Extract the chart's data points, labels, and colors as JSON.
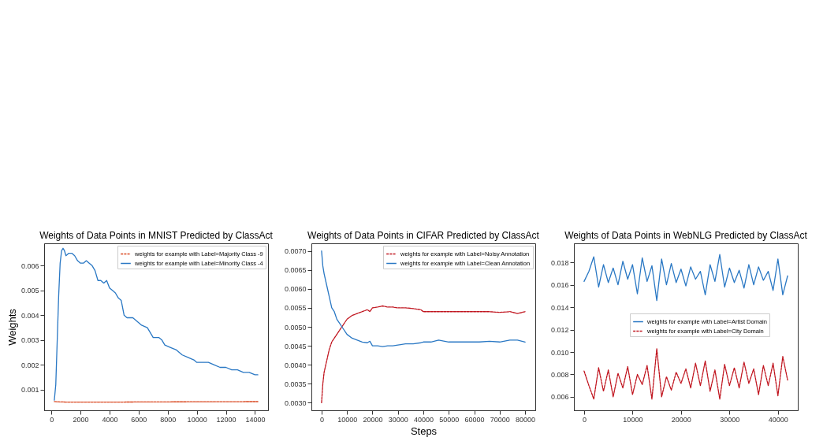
{
  "chart_data": [
    {
      "type": "line",
      "title": "Weights of Data Points in MNIST Predicted by ClassAct",
      "ylabel": "Weights",
      "legend": "top right",
      "grid": false,
      "xlim": [
        -500,
        14900
      ],
      "xticks": [
        0,
        2000,
        4000,
        6000,
        8000,
        10000,
        12000,
        14000
      ],
      "ylim": [
        0.00017,
        0.0069
      ],
      "yticks": [
        0.001,
        0.002,
        0.003,
        0.004,
        0.005,
        0.006
      ],
      "series": [
        {
          "name": "weights for example with Label=Majority Class -9",
          "color": "#d9461e",
          "line_style": "dashed",
          "x": [
            200,
            1000,
            4000,
            8000,
            14200
          ],
          "values": [
            0.00052,
            0.0005,
            0.0005,
            0.00051,
            0.00052
          ]
        },
        {
          "name": "weights for example with Label=Minority Class -4",
          "color": "#2a78c4",
          "line_style": "solid",
          "x": [
            200,
            300,
            400,
            500,
            600,
            700,
            800,
            900,
            1000,
            1200,
            1400,
            1600,
            1800,
            2000,
            2200,
            2400,
            2600,
            2800,
            3000,
            3200,
            3400,
            3600,
            3800,
            4000,
            4200,
            4400,
            4600,
            4800,
            5000,
            5200,
            5600,
            6000,
            6200,
            6600,
            7000,
            7200,
            7400,
            7600,
            7800,
            8200,
            8600,
            9000,
            9400,
            9800,
            10000,
            10400,
            10800,
            11200,
            11600,
            12000,
            12400,
            12800,
            13200,
            13600,
            14000,
            14200
          ],
          "values": [
            0.00058,
            0.0012,
            0.003,
            0.0048,
            0.0061,
            0.0066,
            0.0067,
            0.0066,
            0.0064,
            0.0065,
            0.0065,
            0.0064,
            0.0062,
            0.0061,
            0.0061,
            0.0062,
            0.0061,
            0.006,
            0.0058,
            0.0054,
            0.0054,
            0.0053,
            0.0054,
            0.0051,
            0.005,
            0.0049,
            0.0047,
            0.0046,
            0.004,
            0.0039,
            0.0039,
            0.0037,
            0.0036,
            0.0035,
            0.0031,
            0.0031,
            0.0031,
            0.003,
            0.0028,
            0.0027,
            0.0026,
            0.0024,
            0.0023,
            0.0022,
            0.0021,
            0.0021,
            0.0021,
            0.002,
            0.0019,
            0.0019,
            0.0018,
            0.0018,
            0.0017,
            0.0017,
            0.0016,
            0.0016
          ]
        }
      ]
    },
    {
      "type": "line",
      "title": "Weights of Data Points in CIFAR Predicted by ClassAct",
      "xlabel": "Steps",
      "legend": "top right",
      "grid": false,
      "xlim": [
        -4000,
        84000
      ],
      "xticks": [
        0,
        10000,
        20000,
        30000,
        40000,
        50000,
        60000,
        70000,
        80000
      ],
      "ylim": [
        0.0028,
        0.0072
      ],
      "yticks": [
        {
          "value": 0.003,
          "label": "0.0030"
        },
        {
          "value": 0.0035,
          "label": "0.0035"
        },
        {
          "value": 0.004,
          "label": "0.0040"
        },
        {
          "value": 0.0045,
          "label": "0.0045"
        },
        {
          "value": 0.005,
          "label": "0.0050"
        },
        {
          "value": 0.0055,
          "label": "0.0055"
        },
        {
          "value": 0.006,
          "label": "0.0060"
        },
        {
          "value": 0.0065,
          "label": "0.0065"
        },
        {
          "value": 0.007,
          "label": "0.0070"
        }
      ],
      "series": [
        {
          "name": "weights for example with Label=Noisy Annotation",
          "color": "#c0141e",
          "line_style": "dashed",
          "x": [
            0,
            500,
            1000,
            2000,
            3000,
            4000,
            5000,
            6000,
            7000,
            8000,
            10000,
            12000,
            14000,
            16000,
            18000,
            19000,
            20000,
            22000,
            24000,
            26000,
            28000,
            30000,
            33000,
            36000,
            39000,
            40000,
            43000,
            46000,
            50000,
            54000,
            58000,
            62000,
            66000,
            70000,
            74000,
            77000,
            80000
          ],
          "values": [
            0.003,
            0.0035,
            0.0038,
            0.0041,
            0.0044,
            0.0046,
            0.0047,
            0.0048,
            0.0049,
            0.005,
            0.0052,
            0.0053,
            0.00535,
            0.0054,
            0.00545,
            0.0054,
            0.0055,
            0.00552,
            0.00555,
            0.00552,
            0.00552,
            0.0055,
            0.0055,
            0.00548,
            0.00545,
            0.0054,
            0.0054,
            0.0054,
            0.0054,
            0.0054,
            0.0054,
            0.0054,
            0.0054,
            0.00538,
            0.0054,
            0.00535,
            0.0054
          ]
        },
        {
          "name": "weights for example with Label=Clean Annotation",
          "color": "#2a78c4",
          "line_style": "solid",
          "x": [
            0,
            500,
            1000,
            2000,
            3000,
            4000,
            5000,
            6000,
            7000,
            8000,
            10000,
            12000,
            14000,
            16000,
            18000,
            19000,
            20000,
            22000,
            24000,
            26000,
            28000,
            30000,
            33000,
            36000,
            39000,
            40000,
            43000,
            46000,
            50000,
            54000,
            58000,
            62000,
            66000,
            70000,
            74000,
            77000,
            80000
          ],
          "values": [
            0.007,
            0.0066,
            0.0064,
            0.0061,
            0.0058,
            0.0055,
            0.0054,
            0.0052,
            0.0051,
            0.005,
            0.0048,
            0.0047,
            0.00465,
            0.0046,
            0.00458,
            0.00462,
            0.0045,
            0.0045,
            0.00448,
            0.0045,
            0.0045,
            0.00452,
            0.00455,
            0.00455,
            0.00458,
            0.0046,
            0.0046,
            0.00465,
            0.0046,
            0.0046,
            0.0046,
            0.0046,
            0.00462,
            0.0046,
            0.00465,
            0.00465,
            0.0046
          ]
        }
      ]
    },
    {
      "type": "line",
      "title": "Weights of Data Points in WebNLG Predicted by ClassAct",
      "legend": "right",
      "grid": false,
      "xlim": [
        -2100,
        44100
      ],
      "xticks": [
        0,
        10000,
        20000,
        30000,
        40000
      ],
      "ylim": [
        0.0048,
        0.0197
      ],
      "yticks": [
        0.006,
        0.008,
        {
          "value": 0.01,
          "label": "0.010"
        },
        0.012,
        0.014,
        0.016,
        0.018
      ],
      "series": [
        {
          "name": "weights for example with Label=Artist Domain",
          "color": "#2a78c4",
          "line_style": "solid",
          "x": [
            0,
            1000,
            2000,
            3000,
            4000,
            5000,
            6000,
            7000,
            8000,
            9000,
            10000,
            11000,
            12000,
            13000,
            14000,
            15000,
            16000,
            17000,
            18000,
            19000,
            20000,
            21000,
            22000,
            23000,
            24000,
            25000,
            26000,
            27000,
            28000,
            29000,
            30000,
            31000,
            32000,
            33000,
            34000,
            35000,
            36000,
            37000,
            38000,
            39000,
            40000,
            41000,
            42000
          ],
          "values": [
            0.0163,
            0.0172,
            0.0185,
            0.0158,
            0.0178,
            0.0162,
            0.0175,
            0.016,
            0.0181,
            0.0165,
            0.0178,
            0.0152,
            0.0184,
            0.0163,
            0.0177,
            0.0146,
            0.0183,
            0.016,
            0.0179,
            0.0162,
            0.0174,
            0.0159,
            0.0176,
            0.0165,
            0.0172,
            0.0151,
            0.0178,
            0.0163,
            0.0187,
            0.0158,
            0.0175,
            0.0162,
            0.0173,
            0.0157,
            0.0178,
            0.016,
            0.0176,
            0.0164,
            0.0172,
            0.0155,
            0.0183,
            0.0151,
            0.0168
          ]
        },
        {
          "name": "weights for example with Label=City Domain",
          "color": "#c0141e",
          "line_style": "dashed",
          "x": [
            0,
            1000,
            2000,
            3000,
            4000,
            5000,
            6000,
            7000,
            8000,
            9000,
            10000,
            11000,
            12000,
            13000,
            14000,
            15000,
            16000,
            17000,
            18000,
            19000,
            20000,
            21000,
            22000,
            23000,
            24000,
            25000,
            26000,
            27000,
            28000,
            29000,
            30000,
            31000,
            32000,
            33000,
            34000,
            35000,
            36000,
            37000,
            38000,
            39000,
            40000,
            41000,
            42000
          ],
          "values": [
            0.0083,
            0.007,
            0.0058,
            0.0086,
            0.0065,
            0.0084,
            0.006,
            0.0081,
            0.0068,
            0.0087,
            0.0062,
            0.008,
            0.0071,
            0.0088,
            0.0058,
            0.0103,
            0.006,
            0.0078,
            0.0066,
            0.0082,
            0.0072,
            0.0085,
            0.0068,
            0.009,
            0.007,
            0.0092,
            0.0065,
            0.0084,
            0.0058,
            0.0089,
            0.007,
            0.0086,
            0.0068,
            0.0091,
            0.0072,
            0.0085,
            0.0062,
            0.0088,
            0.007,
            0.009,
            0.0061,
            0.0096,
            0.0075
          ]
        }
      ]
    }
  ]
}
